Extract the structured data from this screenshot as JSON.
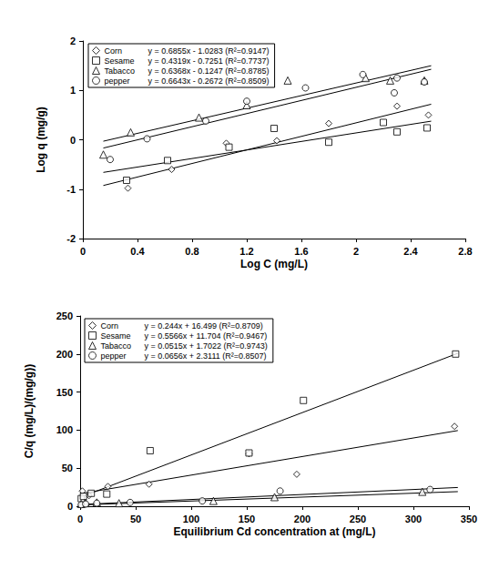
{
  "chart_data": [
    {
      "type": "scatter",
      "x_label": "Log C (mg/L)",
      "y_label": "Log q (mg/g)",
      "xlim": [
        0,
        2.8
      ],
      "xticks": [
        0,
        0.4,
        0.8,
        1.2,
        1.6,
        2,
        2.4,
        2.8
      ],
      "ylim": [
        -2,
        2
      ],
      "yticks": [
        -2,
        -1,
        0,
        1,
        2
      ],
      "grid": false,
      "legend": "upper left",
      "series": [
        {
          "name": "Corn",
          "color": "#000000",
          "marker": "diamond",
          "x": [
            0.33,
            0.65,
            1.05,
            1.42,
            1.8,
            2.3,
            2.53
          ],
          "values": [
            -0.98,
            -0.6,
            -0.07,
            -0.02,
            0.33,
            0.68,
            0.5
          ],
          "trend": {
            "equation": "y = 0.6855x - 1.0283 (R²=0.9147)",
            "slope": 0.6855,
            "intercept": -1.0283,
            "x_range": [
              0.15,
              2.55
            ]
          }
        },
        {
          "name": "Sesame",
          "color": "#000000",
          "marker": "square",
          "x": [
            0.32,
            0.62,
            1.07,
            1.4,
            1.8,
            2.2,
            2.3,
            2.52
          ],
          "values": [
            -0.82,
            -0.42,
            -0.15,
            0.23,
            -0.05,
            0.35,
            0.16,
            0.24
          ],
          "trend": {
            "equation": "y = 0.4319x - 0.7251 (R²=0.7737)",
            "slope": 0.4319,
            "intercept": -0.7251,
            "x_range": [
              0.15,
              2.55
            ]
          }
        },
        {
          "name": "Tabacco",
          "color": "#000000",
          "marker": "triangle",
          "x": [
            0.15,
            0.35,
            0.85,
            1.2,
            1.5,
            2.07,
            2.25,
            2.5
          ],
          "values": [
            -0.3,
            0.15,
            0.45,
            0.7,
            1.2,
            1.25,
            1.2,
            1.2
          ],
          "trend": {
            "equation": "y = 0.6368x - 0.1247 (R²=0.8785)",
            "slope": 0.6368,
            "intercept": -0.1247,
            "x_range": [
              0.15,
              2.55
            ]
          }
        },
        {
          "name": "pepper",
          "color": "#000000",
          "marker": "circle",
          "x": [
            0.2,
            0.47,
            0.9,
            1.2,
            1.63,
            2.05,
            2.28,
            2.3,
            2.5
          ],
          "values": [
            -0.4,
            0.02,
            0.38,
            0.78,
            1.05,
            1.32,
            0.95,
            1.25,
            1.17
          ],
          "trend": {
            "equation": "y = 0.6643x - 0.2672 (R²=0.8509)",
            "slope": 0.6643,
            "intercept": -0.2672,
            "x_range": [
              0.15,
              2.55
            ]
          }
        }
      ]
    },
    {
      "type": "scatter",
      "x_label": "Equilibrium Cd concentration at (mg/L)",
      "y_label": "C/q (mg/L)/(mg/g))",
      "xlim": [
        0,
        350
      ],
      "xticks": [
        0,
        50,
        100,
        150,
        200,
        250,
        300,
        350
      ],
      "ylim": [
        0,
        250
      ],
      "yticks": [
        0,
        50,
        100,
        150,
        200,
        250
      ],
      "grid": false,
      "legend": "upper left",
      "series": [
        {
          "name": "Corn",
          "color": "#000000",
          "marker": "diamond",
          "x": [
            2,
            8,
            25,
            62,
            152,
            195,
            337
          ],
          "values": [
            20,
            14,
            26,
            29,
            69,
            42,
            105
          ],
          "trend": {
            "equation": "y = 0.244x + 16.499 (R²=0.8709)",
            "slope": 0.244,
            "intercept": 16.499,
            "x_range": [
              0,
              340
            ]
          }
        },
        {
          "name": "Sesame",
          "color": "#000000",
          "marker": "square",
          "x": [
            1,
            3,
            10,
            24,
            63,
            152,
            201,
            338
          ],
          "values": [
            10,
            13,
            17,
            16,
            73,
            70,
            139,
            200
          ],
          "trend": {
            "equation": "y = 0.5566x + 11.704 (R²=0.9467)",
            "slope": 0.5566,
            "intercept": 11.704,
            "x_range": [
              0,
              340
            ]
          }
        },
        {
          "name": "Tabacco",
          "color": "#000000",
          "marker": "triangle",
          "x": [
            1,
            5,
            15,
            35,
            120,
            175,
            308
          ],
          "values": [
            3,
            4,
            5,
            4,
            7,
            12,
            19
          ],
          "trend": {
            "equation": "y = 0.0515x + 1.7022 (R²=0.9743)",
            "slope": 0.0515,
            "intercept": 1.7022,
            "x_range": [
              0,
              340
            ]
          }
        },
        {
          "name": "pepper",
          "color": "#000000",
          "marker": "circle",
          "x": [
            1,
            5,
            15,
            45,
            110,
            180,
            315
          ],
          "values": [
            2,
            3,
            4,
            5,
            7,
            20,
            22
          ],
          "trend": {
            "equation": "y = 0.0656x + 2.3111 (R²=0.8507)",
            "slope": 0.0656,
            "intercept": 2.3111,
            "x_range": [
              0,
              340
            ]
          }
        }
      ]
    }
  ]
}
